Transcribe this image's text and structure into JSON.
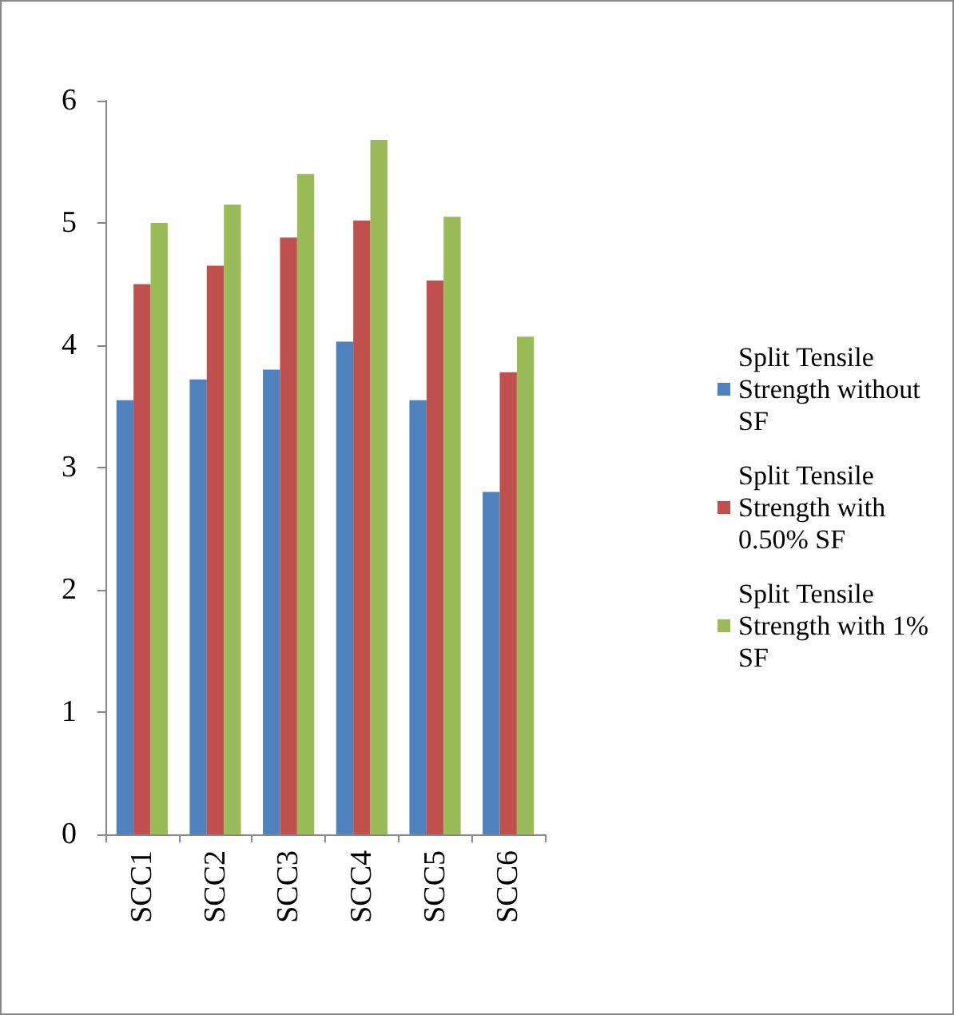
{
  "chart_data": {
    "type": "bar",
    "categories": [
      "SCC1",
      "SCC2",
      "SCC3",
      "SCC4",
      "SCC5",
      "SCC6"
    ],
    "series": [
      {
        "name": "Split Tensile Strength without SF",
        "color": "#4f81bd",
        "values": [
          3.55,
          3.72,
          3.8,
          4.03,
          3.55,
          2.8
        ]
      },
      {
        "name": "Split Tensile Strength with 0.50% SF",
        "color": "#c0504d",
        "values": [
          4.5,
          4.65,
          4.88,
          5.02,
          4.53,
          3.78
        ]
      },
      {
        "name": "Split Tensile Strength with 1% SF",
        "color": "#9bbb59",
        "values": [
          5.0,
          5.15,
          5.4,
          5.68,
          5.05,
          4.07
        ]
      }
    ],
    "ylim": [
      0,
      6
    ],
    "yticks": [
      0,
      1,
      2,
      3,
      4,
      5,
      6
    ],
    "grid": false,
    "legend": "right"
  }
}
